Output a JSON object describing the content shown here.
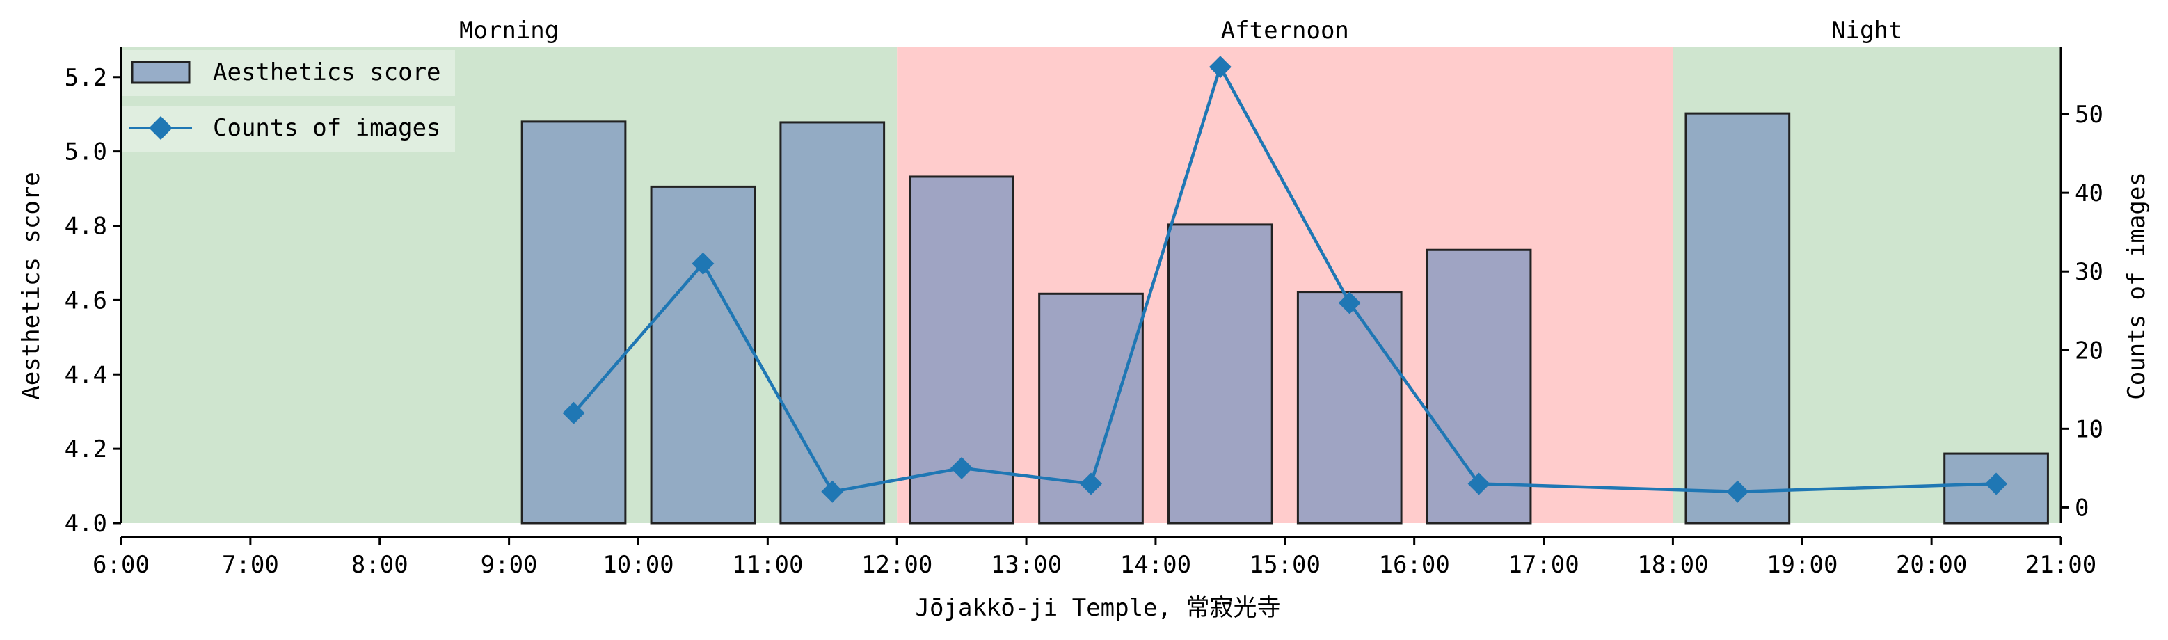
{
  "chart_data": {
    "type": "bar",
    "xlabel": "Jōjakkō-ji Temple, 常寂光寺",
    "ylabel_left": "Aesthetics score",
    "ylabel_right": "Counts of images",
    "x_range": [
      6,
      21
    ],
    "x_tick_labels": [
      "6:00",
      "7:00",
      "8:00",
      "9:00",
      "10:00",
      "11:00",
      "12:00",
      "13:00",
      "14:00",
      "15:00",
      "16:00",
      "17:00",
      "18:00",
      "19:00",
      "20:00",
      "21:00"
    ],
    "ylim_left": [
      4.0,
      5.28
    ],
    "y_ticks_left": [
      "4.0",
      "4.2",
      "4.4",
      "4.6",
      "4.8",
      "5.0",
      "5.2"
    ],
    "ylim_right": [
      -2,
      58.5
    ],
    "y_ticks_right": [
      "0",
      "10",
      "20",
      "30",
      "40",
      "50"
    ],
    "periods": [
      {
        "label": "Morning",
        "start": 6,
        "end": 12,
        "color": "#cfe5cf"
      },
      {
        "label": "Afternoon",
        "start": 12,
        "end": 18,
        "color": "#ffcccc"
      },
      {
        "label": "Night",
        "start": 18,
        "end": 21,
        "color": "#cfe5cf"
      }
    ],
    "series": [
      {
        "name": "Aesthetics score",
        "type": "bar",
        "color": "#7f97c0",
        "x": [
          9.5,
          10.5,
          11.5,
          12.5,
          13.5,
          14.5,
          15.5,
          16.5,
          18.5,
          20.5
        ],
        "values": [
          5.08,
          4.905,
          5.078,
          4.932,
          4.617,
          4.803,
          4.622,
          4.735,
          5.102,
          4.187
        ]
      },
      {
        "name": "Counts of images",
        "type": "line",
        "color": "#1f77b4",
        "marker": "diamond",
        "x": [
          9.5,
          10.5,
          11.5,
          12.5,
          13.5,
          14.5,
          15.5,
          16.5,
          18.5,
          20.5
        ],
        "values": [
          12,
          31,
          2,
          5,
          3,
          56,
          26,
          3,
          2,
          3
        ]
      }
    ],
    "legend_placement": "top-left",
    "grid": false
  }
}
